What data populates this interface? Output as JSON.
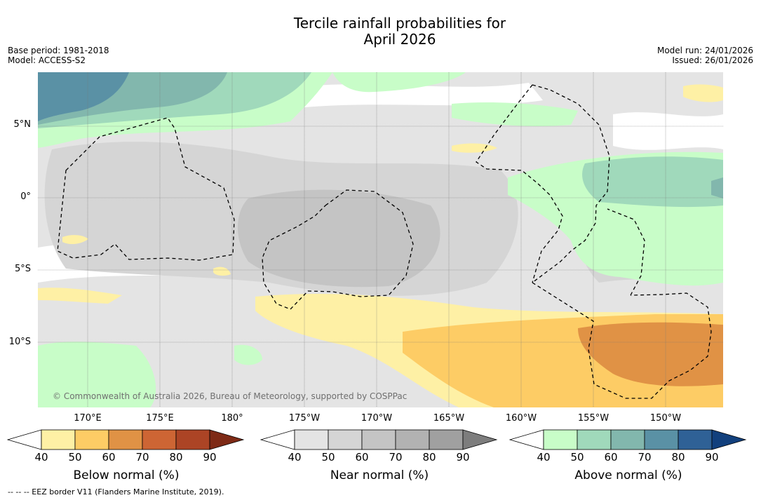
{
  "title": {
    "line1": "Tercile rainfall probabilities for",
    "line2": "April 2026"
  },
  "meta_left": {
    "base_period": "Base period: 1981-2018",
    "model": "Model: ACCESS-S2"
  },
  "meta_right": {
    "model_run": "Model run: 24/01/2026",
    "issued": "Issued: 26/01/2026"
  },
  "map": {
    "lat_labels": [
      "5°N",
      "0°",
      "5°S",
      "10°S"
    ],
    "lon_labels": [
      "170°E",
      "175°E",
      "180°",
      "175°W",
      "170°W",
      "165°W",
      "160°W",
      "155°W",
      "150°W"
    ],
    "copyright": "© Commonwealth of Australia 2026, Bureau of Meteorology, supported by COSPPac"
  },
  "colorbars": {
    "below": {
      "label": "Below normal (%)",
      "ticks": [
        "40",
        "50",
        "60",
        "70",
        "80",
        "90"
      ],
      "colors": [
        "#fef0a5",
        "#fdcc65",
        "#e09245",
        "#cd6534",
        "#ac4425",
        "#7e2a16"
      ]
    },
    "near": {
      "label": "Near normal (%)",
      "ticks": [
        "40",
        "50",
        "60",
        "70",
        "80",
        "90"
      ],
      "colors": [
        "#e4e4e4",
        "#d5d5d5",
        "#c4c4c4",
        "#b2b2b2",
        "#a0a0a0",
        "#7d7d7d"
      ]
    },
    "above": {
      "label": "Above normal (%)",
      "ticks": [
        "40",
        "50",
        "60",
        "70",
        "80",
        "90"
      ],
      "colors": [
        "#c8fdc8",
        "#a0d9bb",
        "#82b7ad",
        "#5a91a5",
        "#2f6196",
        "#12407d"
      ]
    }
  },
  "footer": "--  --  -- EEZ border V11 (Flanders Marine Institute, 2019)."
}
